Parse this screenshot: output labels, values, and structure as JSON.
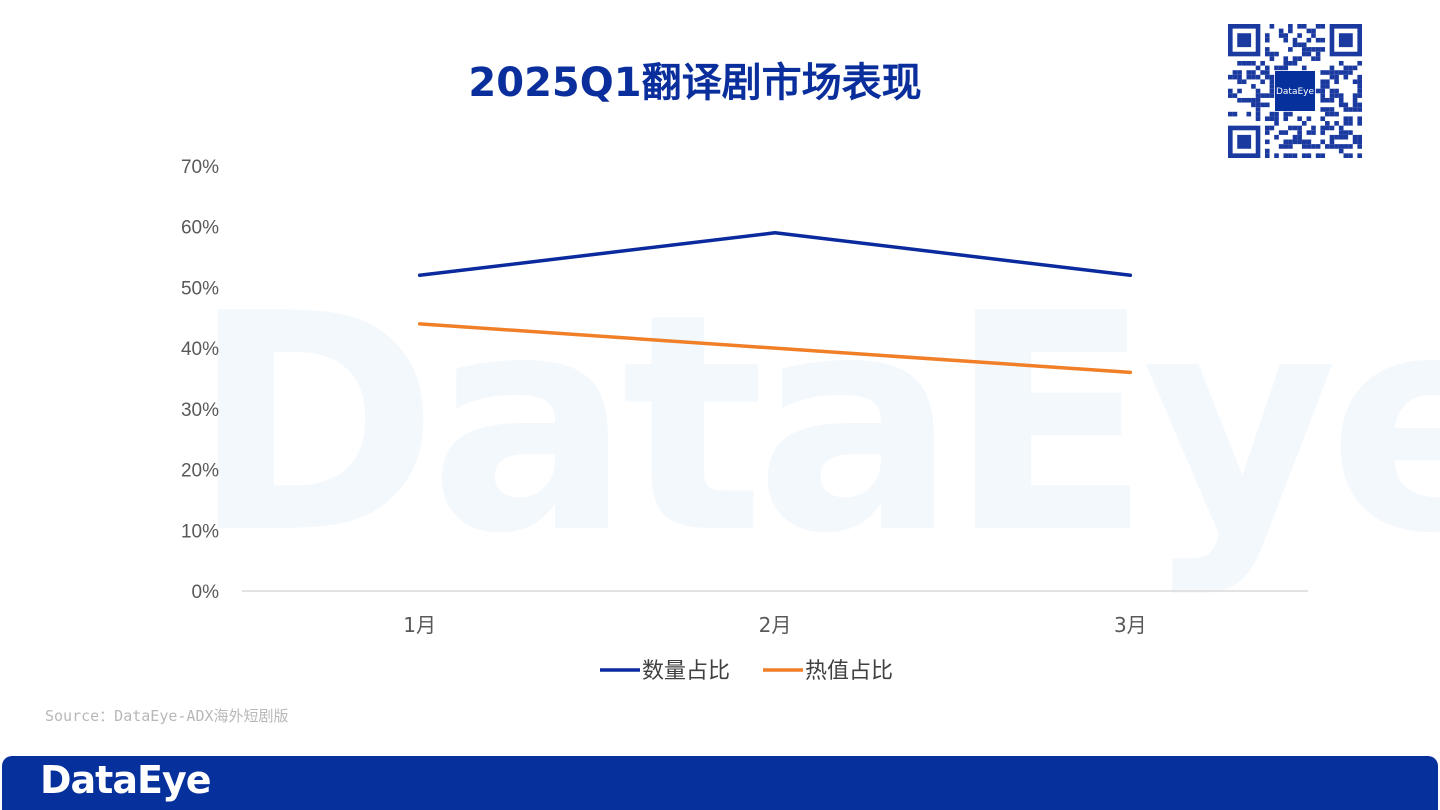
{
  "title": "2025Q1翻译剧市场表现",
  "source": "Source：DataEye-ADX海外短剧版",
  "footer_logo": "DataEye",
  "watermark": "DataEye",
  "qr_label": "DataEye",
  "chart_data": {
    "type": "line",
    "categories": [
      "1月",
      "2月",
      "3月"
    ],
    "ylim": [
      0,
      70
    ],
    "yticks": [
      "0%",
      "10%",
      "20%",
      "30%",
      "40%",
      "50%",
      "60%",
      "70%"
    ],
    "grid": false,
    "legend_position": "bottom",
    "series": [
      {
        "name": "数量占比",
        "values": [
          52,
          59,
          52
        ],
        "color": "#0a2a9e"
      },
      {
        "name": "热值占比",
        "values": [
          44,
          40,
          36
        ],
        "color": "#f07f28"
      }
    ]
  }
}
